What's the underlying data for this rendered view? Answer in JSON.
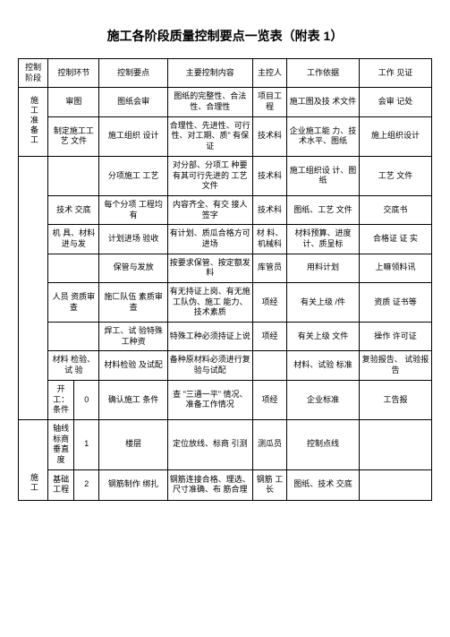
{
  "title": "施工各阶段质量控制要点一览表（附表 1）",
  "headers": {
    "stage": "控制 阶段",
    "link": "控制环节",
    "point": "控制要点",
    "content": "主要控制内容",
    "person": "主控人",
    "basis": "工作依据",
    "witness": "工作 见证"
  },
  "stage1": "施工准备工",
  "stage2": "施工",
  "rows": [
    {
      "link": "审图",
      "sub": "",
      "point": "图纸会审",
      "content": "图纸的完整性、合法性、合理性",
      "person": "项目工程",
      "basis": "施工图及技 术文件",
      "witness": "会审 记处"
    },
    {
      "link": "制定施工工艺 文件",
      "sub": "",
      "point": "施工组织 设计",
      "content": "合理性、先进性、可行性、对工期、质\" 有保证",
      "person": "技术科",
      "basis": "企业施工能 力、技术水平、图纸",
      "witness": "施上组织设计"
    },
    {
      "link": "",
      "sub": "",
      "point": "分项施工 工艺",
      "content": "对分部、分项工 种要有其可行先进的 工艺文件",
      "person": "技术科",
      "basis": "施工组织设 计、图纸",
      "witness": "工艺 文件"
    },
    {
      "link": "技术 交底",
      "sub": "",
      "point": "每个分项 工程均有",
      "content": "内容齐全、有交 接人签字",
      "person": "技术科",
      "basis": "图纸、工艺 文件",
      "witness": "交底书"
    },
    {
      "link": "机 具、材料进与发",
      "sub": "",
      "point": "计划进场 验收",
      "content": "有计划、质瓜合格方可进场",
      "person": "材 料、机械科",
      "basis": "材料预算、进度计、质呈标",
      "witness": "合格证 证 实"
    },
    {
      "link": "",
      "sub": "",
      "point": "保管与发放",
      "content": "按要求保管、按定额发料",
      "person": "库管员",
      "basis": "用料计划",
      "witness": "上嘛领料讯"
    },
    {
      "link": "人员 资质审 查",
      "sub": "",
      "point": "施匚队伍 素质审查",
      "content": "有无持证上岗、有无施工队伪、施工 能力、技术素质",
      "person": "项经",
      "basis": "有关上级 /件",
      "witness": "资质 证书等"
    },
    {
      "link": "",
      "sub": "",
      "point": "焊工、试 验特殊工种资",
      "content": "特殊工种必须持证上说",
      "person": "项经",
      "basis": "有关上级 文件",
      "witness": "操作 许可证"
    },
    {
      "link": "材料 检验、试 验",
      "sub": "",
      "point": "材料检验 及试配",
      "content": "备种原材料必须进行复验与试配",
      "person": "",
      "basis": "材料、试验 标准",
      "witness": "复验报告、 试验报告"
    },
    {
      "link": "开 工：条件",
      "sub": "0",
      "point": "确认施工 条件",
      "content": "查 \"三通一平\" 情况、准备工作情况",
      "person": "项经",
      "basis": "企业标准",
      "witness": "工告报"
    },
    {
      "link": "轴线标商垂直 度",
      "sub": "1",
      "point": "楼层",
      "content": "定位放线、标商 引测",
      "person": "测瓜员",
      "basis": "控制点线",
      "witness": ""
    },
    {
      "link": "基础 工程",
      "sub": "2",
      "point": "钢筋制作 绑扎",
      "content": "钢筋连接合格、理选、尺寸准确、布 筋合理",
      "person": "钢筋 工长",
      "basis": "图纸、技术 交底",
      "witness": ""
    }
  ]
}
